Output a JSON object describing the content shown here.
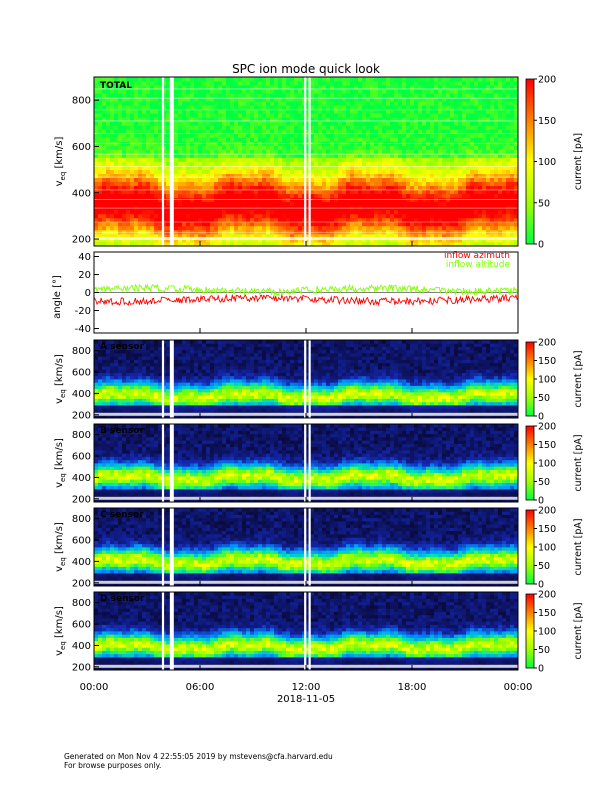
{
  "chart_data": {
    "title": "SPC ion mode quick look",
    "type": "heatmap",
    "time_axis": {
      "tick_labels": [
        "00:00",
        "06:00",
        "12:00",
        "18:00",
        "00:00"
      ],
      "tick_hours": [
        0,
        6,
        12,
        18,
        24
      ],
      "date_label": "2018-11-05"
    },
    "data_gaps_hours": [
      3.9,
      4.35,
      4.45,
      11.95,
      12.2
    ],
    "spectrogram_panels": [
      {
        "label": "TOTAL",
        "ylabel_main": "v",
        "ylabel_sub": "eq",
        "ylabel_unit": " [km/s]",
        "ylim": [
          170,
          900
        ],
        "y_ticks": [
          200,
          400,
          600,
          800
        ],
        "colorbar_label": "current [pA]",
        "colorbar_range": [
          0,
          200
        ],
        "colorbar_ticks": [
          0,
          50,
          100,
          150,
          200
        ],
        "peak_speed_kms": 340
      },
      {
        "label": "A sensor",
        "ylabel_main": "v",
        "ylabel_sub": "eq",
        "ylabel_unit": " [km/s]",
        "ylim": [
          170,
          900
        ],
        "y_ticks": [
          200,
          400,
          600,
          800
        ],
        "colorbar_label": "current [pA]",
        "colorbar_range": [
          0,
          200
        ],
        "colorbar_ticks": [
          0,
          50,
          100,
          150,
          200
        ],
        "peak_speed_kms": 380
      },
      {
        "label": "B sensor",
        "ylabel_main": "v",
        "ylabel_sub": "eq",
        "ylabel_unit": " [km/s]",
        "ylim": [
          170,
          900
        ],
        "y_ticks": [
          200,
          400,
          600,
          800
        ],
        "colorbar_label": "current [pA]",
        "colorbar_range": [
          0,
          200
        ],
        "colorbar_ticks": [
          0,
          50,
          100,
          150,
          200
        ],
        "peak_speed_kms": 400
      },
      {
        "label": "C sensor",
        "ylabel_main": "v",
        "ylabel_sub": "eq",
        "ylabel_unit": " [km/s]",
        "ylim": [
          170,
          900
        ],
        "y_ticks": [
          200,
          400,
          600,
          800
        ],
        "colorbar_label": "current [pA]",
        "colorbar_range": [
          0,
          200
        ],
        "colorbar_ticks": [
          0,
          50,
          100,
          150,
          200
        ],
        "peak_speed_kms": 400
      },
      {
        "label": "D sensor",
        "ylabel_main": "v",
        "ylabel_sub": "eq",
        "ylabel_unit": " [km/s]",
        "ylim": [
          170,
          900
        ],
        "y_ticks": [
          200,
          400,
          600,
          800
        ],
        "colorbar_label": "current [pA]",
        "colorbar_range": [
          0,
          200
        ],
        "colorbar_ticks": [
          0,
          50,
          100,
          150,
          200
        ],
        "peak_speed_kms": 390
      }
    ],
    "angle_panel": {
      "type": "line",
      "ylabel": "angle [°]",
      "ylim": [
        -45,
        45
      ],
      "y_ticks": [
        -40,
        -20,
        0,
        20,
        40
      ],
      "zero_line": true,
      "series": [
        {
          "name": "inflow azimuth",
          "color": "#ff0000",
          "mean_deg": -8,
          "spread_deg": 4
        },
        {
          "name": "inflow altitude",
          "color": "#80ff00",
          "mean_deg": 3,
          "spread_deg": 4
        }
      ]
    }
  },
  "footer": {
    "line1": "Generated on Mon Nov  4 22:55:05 2019 by mstevens@cfa.harvard.edu",
    "line2": "For browse purposes only."
  },
  "colors": {
    "azimuth": "#ff0000",
    "altitude": "#80ff00",
    "gap": "#ffffff",
    "axis": "#000000"
  }
}
